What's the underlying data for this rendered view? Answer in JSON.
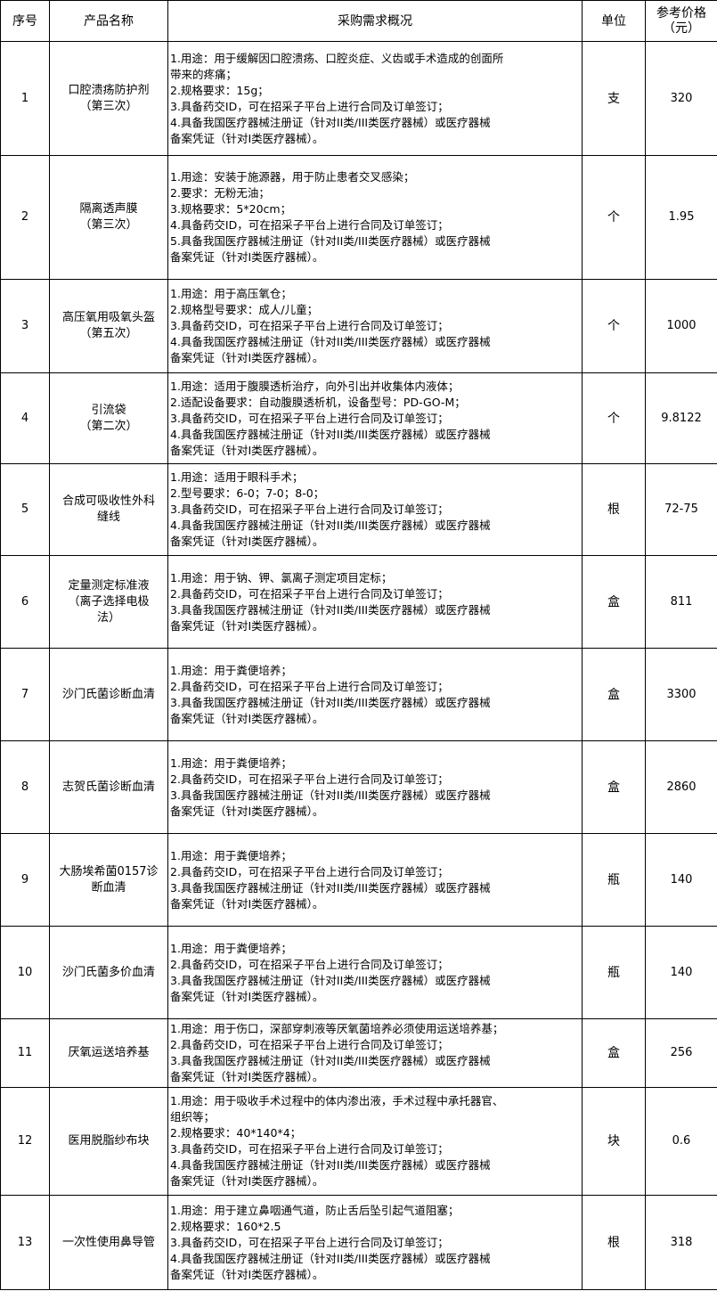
{
  "headers": [
    "序号",
    "产品名称",
    "采购需求概况",
    "单位",
    "参考价格\n（元）"
  ],
  "rows": [
    {
      "no": "1",
      "name": "口腔溃疡防护剂\n（第三次）",
      "req": [
        "1.用途：用于缓解因口腔溃疡、口腔炎症、义齿或手术造成的创面所",
        "带来的疼痛；",
        "2.规格要求：15g；",
        "3.具备药交ID，可在招采子平台上进行合同及订单签订；",
        "4.具备我国医疗器械注册证（针对II类/III类医疗器械）或医疗器械",
        "备案凭证（针对I类医疗器械）。"
      ],
      "unit": "支",
      "price": "320"
    },
    {
      "no": "2",
      "name": "隔离透声膜\n（第三次）",
      "req": [
        "1.用途：安装于施源器，用于防止患者交叉感染；",
        "2.要求：无粉无油；",
        "3.规格要求：5*20cm；",
        "4.具备药交ID，可在招采子平台上进行合同及订单签订；",
        "5.具备我国医疗器械注册证（针对II类/III类医疗器械）或医疗器械",
        "备案凭证（针对I类医疗器械）。"
      ],
      "unit": "个",
      "price": "1.95"
    },
    {
      "no": "3",
      "name": "高压氧用吸氧头盔\n（第五次）",
      "req": [
        "1.用途：用于高压氧仓；",
        "2.规格型号要求：成人/儿童；",
        "3.具备药交ID，可在招采子平台上进行合同及订单签订；",
        "4.具备我国医疗器械注册证（针对II类/III类医疗器械）或医疗器械",
        "备案凭证（针对I类医疗器械）。"
      ],
      "unit": "个",
      "price": "1000"
    },
    {
      "no": "4",
      "name": "引流袋\n（第二次）",
      "req": [
        "1.用途：适用于腹膜透析治疗，向外引出并收集体内液体；",
        "2.适配设备要求：自动腹膜透析机，设备型号：PD-GO-M；",
        "3.具备药交ID，可在招采子平台上进行合同及订单签订；",
        "4.具备我国医疗器械注册证（针对II类/III类医疗器械）或医疗器械",
        "备案凭证（针对I类医疗器械）。"
      ],
      "unit": "个",
      "price": "9.8122"
    },
    {
      "no": "5",
      "name": "合成可吸收性外科\n缝线",
      "req": [
        "1.用途：适用于眼科手术；",
        "2.型号要求：6-0；7-0；8-0；",
        "3.具备药交ID，可在招采子平台上进行合同及订单签订；",
        "4.具备我国医疗器械注册证（针对II类/III类医疗器械）或医疗器械",
        "备案凭证（针对I类医疗器械）。"
      ],
      "unit": "根",
      "price": "72-75"
    },
    {
      "no": "6",
      "name": "定量测定标准液\n（离子选择电极\n法）",
      "req": [
        "1.用途：用于钠、钾、氯离子测定项目定标；",
        "2.具备药交ID，可在招采子平台上进行合同及订单签订；",
        "3.具备我国医疗器械注册证（针对II类/III类医疗器械）或医疗器械",
        "备案凭证（针对I类医疗器械）。"
      ],
      "unit": "盒",
      "price": "811"
    },
    {
      "no": "7",
      "name": "沙门氏菌诊断血清",
      "req": [
        "1.用途：用于粪便培养；",
        "2.具备药交ID，可在招采子平台上进行合同及订单签订；",
        "3.具备我国医疗器械注册证（针对II类/III类医疗器械）或医疗器械",
        "备案凭证（针对I类医疗器械）。"
      ],
      "unit": "盒",
      "price": "3300"
    },
    {
      "no": "8",
      "name": "志贺氏菌诊断血清",
      "req": [
        "1.用途：用于粪便培养；",
        "2.具备药交ID，可在招采子平台上进行合同及订单签订；",
        "3.具备我国医疗器械注册证（针对II类/III类医疗器械）或医疗器械",
        "备案凭证（针对I类医疗器械）。"
      ],
      "unit": "盒",
      "price": "2860"
    },
    {
      "no": "9",
      "name": "大肠埃希菌0157诊\n断血清",
      "req": [
        "1.用途：用于粪便培养；",
        "2.具备药交ID，可在招采子平台上进行合同及订单签订；",
        "3.具备我国医疗器械注册证（针对II类/III类医疗器械）或医疗器械",
        "备案凭证（针对I类医疗器械）。"
      ],
      "unit": "瓶",
      "price": "140"
    },
    {
      "no": "10",
      "name": "沙门氏菌多价血清",
      "req": [
        "1.用途：用于粪便培养；",
        "2.具备药交ID，可在招采子平台上进行合同及订单签订；",
        "3.具备我国医疗器械注册证（针对II类/III类医疗器械）或医疗器械",
        "备案凭证（针对I类医疗器械）。"
      ],
      "unit": "瓶",
      "price": "140"
    },
    {
      "no": "11",
      "name": "厌氧运送培养基",
      "req": [
        "1.用途：用于伤口，深部穿刺液等厌氧菌培养必须使用运送培养基；",
        "2.具备药交ID，可在招采子平台上进行合同及订单签订；",
        "3.具备我国医疗器械注册证（针对II类/III类医疗器械）或医疗器械",
        "备案凭证（针对I类医疗器械）。"
      ],
      "unit": "盒",
      "price": "256"
    },
    {
      "no": "12",
      "name": "医用脱脂纱布块",
      "req": [
        "1.用途：用于吸收手术过程中的体内渗出液，手术过程中承托器官、",
        "组织等；",
        "2.规格要求：40*140*4；",
        "3.具备药交ID，可在招采子平台上进行合同及订单签订；",
        "4.具备我国医疗器械注册证（针对II类/III类医疗器械）或医疗器械",
        "备案凭证（针对I类医疗器械）。"
      ],
      "unit": "块",
      "price": "0.6"
    },
    {
      "no": "13",
      "name": "一次性使用鼻导管",
      "req": [
        "1.用途：用于建立鼻咽通气道，防止舌后坠引起气道阻塞；",
        "2.规格要求：160*2.5",
        "3.具备药交ID，可在招采子平台上进行合同及订单签订；",
        "4.具备我国医疗器械注册证（针对II类/III类医疗器械）或医疗器械",
        "备案凭证（针对I类医疗器械）。"
      ],
      "unit": "根",
      "price": "318"
    }
  ]
}
